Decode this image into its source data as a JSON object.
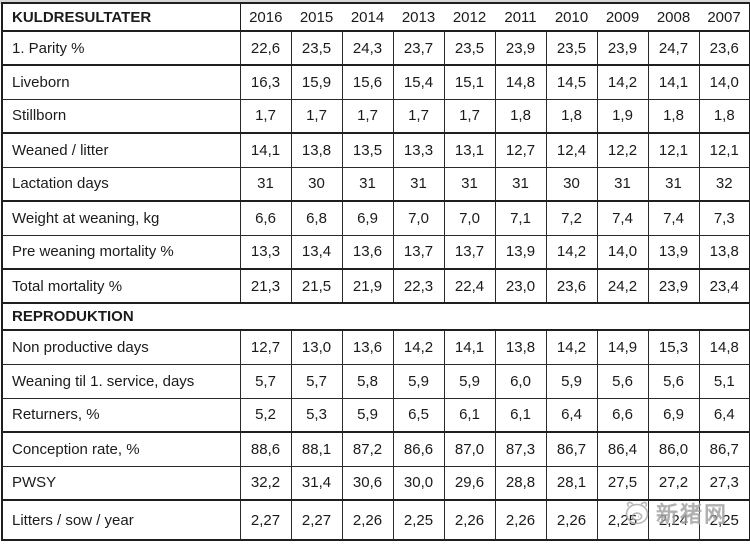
{
  "table": {
    "header": {
      "label": "KULDRESULTATER",
      "years": [
        "2016",
        "2015",
        "2014",
        "2013",
        "2012",
        "2011",
        "2010",
        "2009",
        "2008",
        "2007"
      ]
    },
    "sections": [
      {
        "title": null,
        "rows": [
          {
            "label": "1. Parity %",
            "group_start": false,
            "values": [
              "22,6",
              "23,5",
              "24,3",
              "23,7",
              "23,5",
              "23,9",
              "23,5",
              "23,9",
              "24,7",
              "23,6"
            ]
          },
          {
            "label": "Liveborn",
            "group_start": true,
            "values": [
              "16,3",
              "15,9",
              "15,6",
              "15,4",
              "15,1",
              "14,8",
              "14,5",
              "14,2",
              "14,1",
              "14,0"
            ]
          },
          {
            "label": "Stillborn",
            "group_start": false,
            "values": [
              "1,7",
              "1,7",
              "1,7",
              "1,7",
              "1,7",
              "1,8",
              "1,8",
              "1,9",
              "1,8",
              "1,8"
            ]
          },
          {
            "label": "Weaned / litter",
            "group_start": true,
            "values": [
              "14,1",
              "13,8",
              "13,5",
              "13,3",
              "13,1",
              "12,7",
              "12,4",
              "12,2",
              "12,1",
              "12,1"
            ]
          },
          {
            "label": "Lactation days",
            "group_start": false,
            "values": [
              "31",
              "30",
              "31",
              "31",
              "31",
              "31",
              "30",
              "31",
              "31",
              "32"
            ]
          },
          {
            "label": "Weight at weaning, kg",
            "group_start": true,
            "values": [
              "6,6",
              "6,8",
              "6,9",
              "7,0",
              "7,0",
              "7,1",
              "7,2",
              "7,4",
              "7,4",
              "7,3"
            ]
          },
          {
            "label": "Pre weaning mortality %",
            "group_start": false,
            "values": [
              "13,3",
              "13,4",
              "13,6",
              "13,7",
              "13,7",
              "13,9",
              "14,2",
              "14,0",
              "13,9",
              "13,8"
            ]
          },
          {
            "label": "Total mortality %",
            "group_start": true,
            "values": [
              "21,3",
              "21,5",
              "21,9",
              "22,3",
              "22,4",
              "23,0",
              "23,6",
              "24,2",
              "23,9",
              "23,4"
            ]
          }
        ]
      },
      {
        "title": "REPRODUKTION",
        "rows": [
          {
            "label": "Non productive days",
            "group_start": false,
            "values": [
              "12,7",
              "13,0",
              "13,6",
              "14,2",
              "14,1",
              "13,8",
              "14,2",
              "14,9",
              "15,3",
              "14,8"
            ]
          },
          {
            "label": "Weaning til 1. service, days",
            "group_start": false,
            "values": [
              "5,7",
              "5,7",
              "5,8",
              "5,9",
              "5,9",
              "6,0",
              "5,9",
              "5,6",
              "5,6",
              "5,1"
            ]
          },
          {
            "label": "Returners, %",
            "group_start": false,
            "values": [
              "5,2",
              "5,3",
              "5,9",
              "6,5",
              "6,1",
              "6,1",
              "6,4",
              "6,6",
              "6,9",
              "6,4"
            ]
          },
          {
            "label": "Conception rate, %",
            "group_start": true,
            "values": [
              "88,6",
              "88,1",
              "87,2",
              "86,6",
              "87,0",
              "87,3",
              "86,7",
              "86,4",
              "86,0",
              "86,7"
            ]
          },
          {
            "label": "PWSY",
            "group_start": false,
            "values": [
              "32,2",
              "31,4",
              "30,6",
              "30,0",
              "29,6",
              "28,8",
              "28,1",
              "27,5",
              "27,2",
              "27,3"
            ]
          },
          {
            "label": "Litters / sow / year",
            "group_start": true,
            "values": [
              "2,27",
              "2,27",
              "2,26",
              "2,25",
              "2,26",
              "2,26",
              "2,26",
              "2,25",
              "2,24",
              "2,25"
            ]
          }
        ]
      }
    ]
  },
  "watermark": {
    "text": "新猪网",
    "color": "#a0a0a0"
  }
}
